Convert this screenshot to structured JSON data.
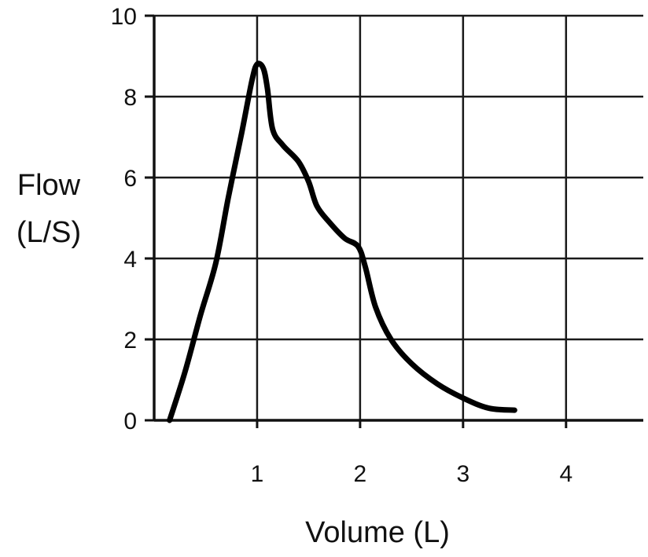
{
  "chart_data": {
    "type": "line",
    "xlabel": "Volume (L)",
    "ylabel_lines": [
      "Flow",
      "(L/S)"
    ],
    "xlim": [
      0,
      4.75
    ],
    "ylim": [
      0,
      10
    ],
    "x_ticks": [
      1,
      2,
      3,
      4
    ],
    "y_ticks": [
      0,
      2,
      4,
      6,
      8,
      10
    ],
    "grid": true,
    "series": [
      {
        "points": [
          {
            "x": 0.15,
            "y": 0
          },
          {
            "x": 0.3,
            "y": 1.2
          },
          {
            "x": 0.45,
            "y": 2.6
          },
          {
            "x": 0.6,
            "y": 3.9
          },
          {
            "x": 0.72,
            "y": 5.5
          },
          {
            "x": 0.85,
            "y": 7.1
          },
          {
            "x": 0.95,
            "y": 8.4
          },
          {
            "x": 1.0,
            "y": 8.8
          },
          {
            "x": 1.06,
            "y": 8.7
          },
          {
            "x": 1.1,
            "y": 8.2
          },
          {
            "x": 1.15,
            "y": 7.2
          },
          {
            "x": 1.25,
            "y": 6.8
          },
          {
            "x": 1.4,
            "y": 6.4
          },
          {
            "x": 1.5,
            "y": 5.9
          },
          {
            "x": 1.58,
            "y": 5.3
          },
          {
            "x": 1.7,
            "y": 4.9
          },
          {
            "x": 1.85,
            "y": 4.5
          },
          {
            "x": 1.98,
            "y": 4.3
          },
          {
            "x": 2.05,
            "y": 3.8
          },
          {
            "x": 2.15,
            "y": 2.8
          },
          {
            "x": 2.3,
            "y": 2.0
          },
          {
            "x": 2.5,
            "y": 1.4
          },
          {
            "x": 2.75,
            "y": 0.9
          },
          {
            "x": 3.0,
            "y": 0.55
          },
          {
            "x": 3.25,
            "y": 0.3
          },
          {
            "x": 3.5,
            "y": 0.25
          }
        ]
      }
    ]
  }
}
